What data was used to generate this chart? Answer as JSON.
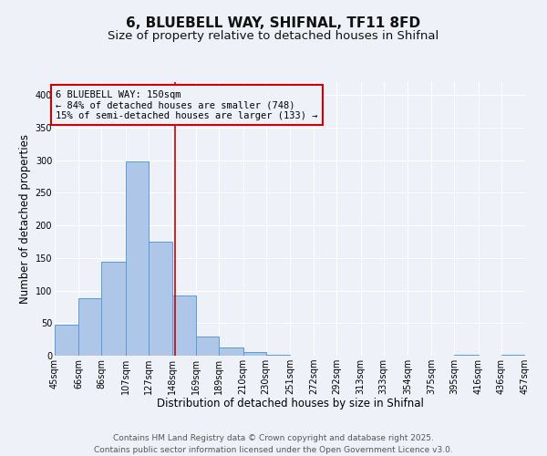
{
  "title": "6, BLUEBELL WAY, SHIFNAL, TF11 8FD",
  "subtitle": "Size of property relative to detached houses in Shifnal",
  "xlabel": "Distribution of detached houses by size in Shifnal",
  "ylabel": "Number of detached properties",
  "bar_edges": [
    45,
    66,
    86,
    107,
    127,
    148,
    169,
    189,
    210,
    230,
    251,
    272,
    292,
    313,
    333,
    354,
    375,
    395,
    416,
    436,
    457
  ],
  "bar_heights": [
    47,
    88,
    144,
    298,
    175,
    93,
    30,
    13,
    5,
    1,
    0,
    0,
    0,
    0,
    0,
    0,
    0,
    1,
    0,
    1
  ],
  "bar_color": "#aec6e8",
  "bar_edge_color": "#5b9bd5",
  "property_line_x": 150,
  "property_line_color": "#cc0000",
  "ylim": [
    0,
    420
  ],
  "xlim": [
    45,
    457
  ],
  "annotation_box_color": "#cc0000",
  "annotation_text_line1": "6 BLUEBELL WAY: 150sqm",
  "annotation_text_line2": "← 84% of detached houses are smaller (748)",
  "annotation_text_line3": "15% of semi-detached houses are larger (133) →",
  "footer_line1": "Contains HM Land Registry data © Crown copyright and database right 2025.",
  "footer_line2": "Contains public sector information licensed under the Open Government Licence v3.0.",
  "bg_color": "#eef2f8",
  "tick_labels": [
    "45sqm",
    "66sqm",
    "86sqm",
    "107sqm",
    "127sqm",
    "148sqm",
    "169sqm",
    "189sqm",
    "210sqm",
    "230sqm",
    "251sqm",
    "272sqm",
    "292sqm",
    "313sqm",
    "333sqm",
    "354sqm",
    "375sqm",
    "395sqm",
    "416sqm",
    "436sqm",
    "457sqm"
  ],
  "title_fontsize": 11,
  "subtitle_fontsize": 9.5,
  "axis_label_fontsize": 8.5,
  "tick_fontsize": 7,
  "annotation_fontsize": 7.5,
  "footer_fontsize": 6.5
}
